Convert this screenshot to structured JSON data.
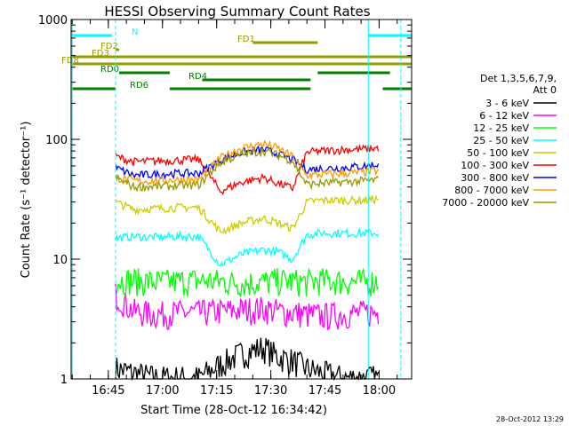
{
  "chart_data": {
    "type": "line",
    "title": "HESSI Observing Summary Count Rates",
    "xlabel": "Start Time (28-Oct-12 16:34:42)",
    "ylabel": "Count Rate (s⁻¹ detector⁻¹)",
    "yscale": "log",
    "ylim": [
      1,
      1000
    ],
    "xlim": [
      "16:34:42",
      "18:09:00"
    ],
    "x_ticks": [
      "16:45",
      "17:00",
      "17:15",
      "17:30",
      "17:45",
      "18:00"
    ],
    "y_ticks": [
      "1",
      "10",
      "100",
      "1000"
    ],
    "grid": false,
    "legend_position": "right",
    "legend_header": [
      "Det 1,3,5,6,7,9,",
      "Att 0"
    ],
    "x": [
      "16:47",
      "16:52",
      "16:58",
      "17:04",
      "17:10",
      "17:16",
      "17:22",
      "17:28",
      "17:32",
      "17:36",
      "17:40",
      "17:44",
      "17:50",
      "17:56",
      "18:00"
    ],
    "series": [
      {
        "name": "3 - 6 keV",
        "color": "#000000",
        "values": [
          1.2,
          1.1,
          1.0,
          1.0,
          1.0,
          1.3,
          1.6,
          1.8,
          1.5,
          1.4,
          1.2,
          1.1,
          1.0,
          1.0,
          1.0
        ]
      },
      {
        "name": "6 - 12 keV",
        "color": "#ff00ff",
        "values": [
          5,
          3.6,
          3.4,
          3.5,
          3.5,
          3.6,
          3.7,
          3.8,
          3.6,
          3.5,
          3.4,
          3.3,
          3.4,
          3.5,
          3.5
        ]
      },
      {
        "name": "12 - 25 keV",
        "color": "#00ff00",
        "values": [
          6.5,
          6.5,
          6.3,
          6.4,
          6.5,
          6.4,
          6.2,
          6.3,
          6.5,
          6.4,
          6.3,
          6.5,
          6.4,
          6.3,
          6.5
        ]
      },
      {
        "name": "25 - 50 keV",
        "color": "#00ffff",
        "values": [
          15,
          15.5,
          15.2,
          15.5,
          15.5,
          9,
          11,
          12,
          11.5,
          10,
          16,
          16.5,
          16.5,
          16.5,
          16.5
        ]
      },
      {
        "name": "50 - 100 keV",
        "color": "#cccc00",
        "values": [
          30,
          26,
          26.5,
          27,
          27,
          17,
          20,
          22,
          20,
          18,
          30,
          31,
          31,
          31,
          32
        ]
      },
      {
        "name": "100 - 300 keV",
        "color": "#ff0000",
        "values": [
          72,
          65,
          66,
          67,
          68,
          37,
          44,
          48,
          43,
          39,
          78,
          80,
          82,
          83,
          85
        ]
      },
      {
        "name": "300 - 800 keV",
        "color": "#0000ff",
        "values": [
          58,
          50,
          51,
          52,
          52,
          67,
          78,
          82,
          76,
          68,
          56,
          57,
          58,
          60,
          62
        ]
      },
      {
        "name": "800 - 7000 keV",
        "color": "#ff9900",
        "values": [
          48,
          45,
          45,
          46,
          46,
          70,
          85,
          92,
          84,
          72,
          50,
          51,
          52,
          53,
          55
        ]
      },
      {
        "name": "7000 - 20000 keV",
        "color": "#999900",
        "values": [
          48,
          40,
          40.5,
          41,
          41.5,
          64,
          75,
          80,
          74,
          66,
          42,
          43,
          44,
          45,
          46
        ]
      }
    ],
    "flags": [
      {
        "label": "N",
        "color": "#00ffff"
      },
      {
        "label": "FD1",
        "color": "#999900"
      },
      {
        "label": "FD2",
        "color": "#999900"
      },
      {
        "label": "FD3",
        "color": "#999900"
      },
      {
        "label": "FD8",
        "color": "#999900"
      },
      {
        "label": "RD0",
        "color": "#007f00"
      },
      {
        "label": "RD4",
        "color": "#007f00"
      },
      {
        "label": "RD6",
        "color": "#007f00"
      }
    ],
    "timestamp": "28-Oct-2012 13:29"
  }
}
